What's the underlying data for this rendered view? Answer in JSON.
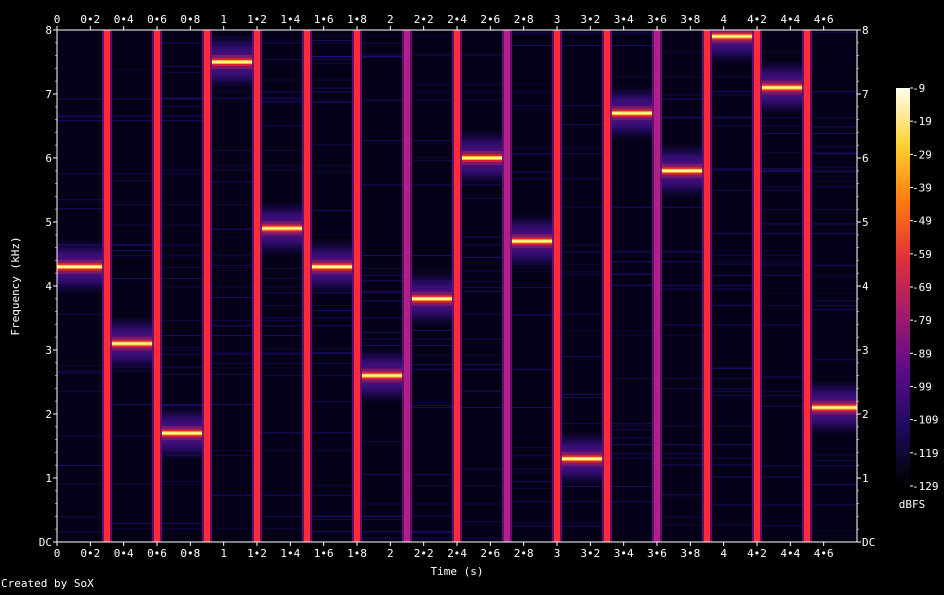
{
  "chart_data": {
    "type": "heatmap",
    "title": "",
    "xlabel": "Time (s)",
    "ylabel": "Frequency (kHz)",
    "colorbar_label": "dBFS",
    "footer": "Created by SoX",
    "xlim": [
      0,
      4.8
    ],
    "ylim": [
      0,
      8
    ],
    "x_ticks": [
      0,
      0.2,
      0.4,
      0.6,
      0.8,
      1,
      1.2,
      1.4,
      1.6,
      1.8,
      2,
      2.2,
      2.4,
      2.6,
      2.8,
      3,
      3.2,
      3.4,
      3.6,
      3.8,
      4,
      4.2,
      4.4,
      4.6
    ],
    "x_tick_labels": [
      "0",
      "0•2",
      "0•4",
      "0•6",
      "0•8",
      "1",
      "1•2",
      "1•4",
      "1•6",
      "1•8",
      "2",
      "2•2",
      "2•4",
      "2•6",
      "2•8",
      "3",
      "3•2",
      "3•4",
      "3•6",
      "3•8",
      "4",
      "4•2",
      "4•4",
      "4•6"
    ],
    "y_ticks": [
      0,
      1,
      2,
      3,
      4,
      5,
      6,
      7,
      8
    ],
    "y_tick_labels_left": [
      "DC",
      "1",
      "2",
      "3",
      "4",
      "5",
      "6",
      "7",
      "8"
    ],
    "y_tick_labels_right": [
      "DC",
      "1",
      "2",
      "3",
      "4",
      "5",
      "6",
      "7",
      "8"
    ],
    "colorbar_ticks": [
      -9,
      -19,
      -29,
      -39,
      -49,
      -59,
      -69,
      -79,
      -89,
      -99,
      -109,
      -119,
      -129
    ],
    "colorbar_range": [
      -129,
      -9
    ],
    "colors": {
      "background": "#000000",
      "noise": "#1a0a55",
      "tone_glow": "#d4203c",
      "tone_core": "#ffff80",
      "transient": "#ff2a3a",
      "colormap": [
        "#000000",
        "#1c0a5c",
        "#5a0a8a",
        "#a01a6c",
        "#e0303a",
        "#ff7a10",
        "#ffd030",
        "#fffff0"
      ]
    },
    "series": [
      {
        "segments": [
          {
            "t0": 0.0,
            "t1": 0.3,
            "freq_khz": 4.3
          },
          {
            "t0": 0.3,
            "t1": 0.6,
            "freq_khz": 3.1
          },
          {
            "t0": 0.6,
            "t1": 0.9,
            "freq_khz": 1.7
          },
          {
            "t0": 0.9,
            "t1": 1.2,
            "freq_khz": 7.5
          },
          {
            "t0": 1.2,
            "t1": 1.5,
            "freq_khz": 4.9
          },
          {
            "t0": 1.5,
            "t1": 1.8,
            "freq_khz": 4.3
          },
          {
            "t0": 1.8,
            "t1": 2.1,
            "freq_khz": 2.6
          },
          {
            "t0": 2.1,
            "t1": 2.4,
            "freq_khz": 3.8
          },
          {
            "t0": 2.4,
            "t1": 2.7,
            "freq_khz": 6.0
          },
          {
            "t0": 2.7,
            "t1": 3.0,
            "freq_khz": 4.7
          },
          {
            "t0": 3.0,
            "t1": 3.3,
            "freq_khz": 1.3
          },
          {
            "t0": 3.3,
            "t1": 3.6,
            "freq_khz": 6.7
          },
          {
            "t0": 3.6,
            "t1": 3.9,
            "freq_khz": 5.8
          },
          {
            "t0": 3.9,
            "t1": 4.2,
            "freq_khz": 7.9
          },
          {
            "t0": 4.2,
            "t1": 4.5,
            "freq_khz": 7.1
          },
          {
            "t0": 4.5,
            "t1": 4.8,
            "freq_khz": 2.1
          }
        ]
      }
    ],
    "transients_s": [
      0.3,
      0.6,
      0.9,
      1.2,
      1.5,
      1.8,
      2.1,
      2.4,
      2.7,
      3.0,
      3.3,
      3.6,
      3.9,
      4.2,
      4.5
    ],
    "grid": false,
    "legend": "colorbar right"
  }
}
